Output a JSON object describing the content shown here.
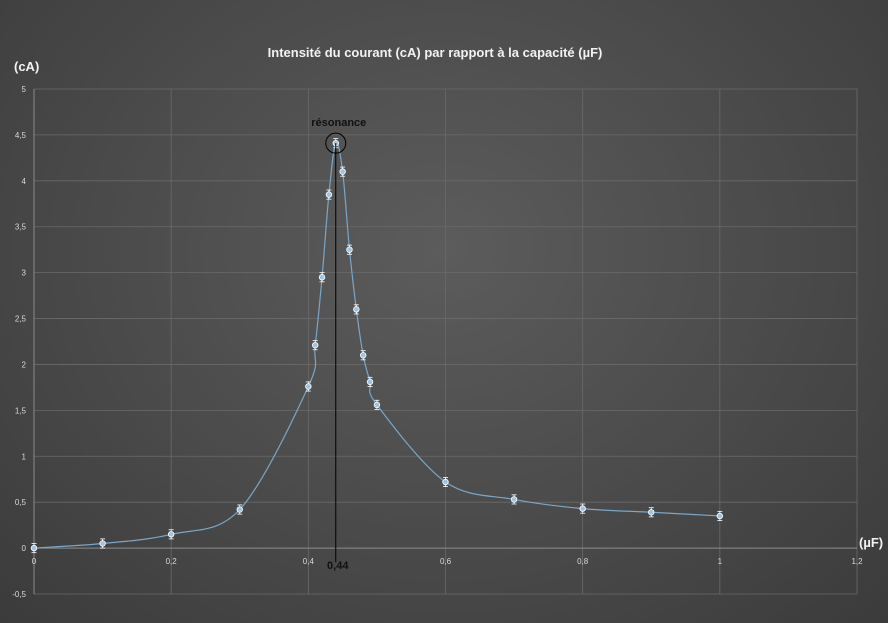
{
  "chart_data": {
    "type": "scatter",
    "title": "Intensité du courant (cA) par rapport à la capacité (µF)",
    "ylabel": "(cA)",
    "xlabel": "(µF)",
    "xlim": [
      0,
      1.2
    ],
    "ylim": [
      -0.5,
      5
    ],
    "x_ticks": [
      "0",
      "0,2",
      "0,4",
      "0,6",
      "0,8",
      "1",
      "1,2"
    ],
    "y_ticks": [
      "-0,5",
      "0",
      "0,5",
      "1",
      "1,5",
      "2",
      "2,5",
      "3",
      "3,5",
      "4",
      "4,5",
      "5"
    ],
    "grid": true,
    "series": [
      {
        "x": [
          0,
          0.1,
          0.2,
          0.3,
          0.4,
          0.41,
          0.42,
          0.43,
          0.44,
          0.45,
          0.46,
          0.47,
          0.48,
          0.49,
          0.5,
          0.6,
          0.7,
          0.8,
          0.9,
          1.0
        ],
        "y": [
          0,
          0.05,
          0.15,
          0.42,
          1.76,
          2.21,
          2.95,
          3.85,
          4.41,
          4.1,
          3.25,
          2.6,
          2.1,
          1.81,
          1.56,
          0.72,
          0.53,
          0.43,
          0.39,
          0.35
        ],
        "error": 0.05
      }
    ],
    "annotations": {
      "resonance_label": "résonance",
      "resonance_x_label": "0,44",
      "resonance_x": 0.44,
      "resonance_y": 4.41
    },
    "colors": {
      "line": "#7aa6c8",
      "marker": "#9fc3e0",
      "marker_edge": "#ffffff",
      "grid": "#6a6a6a",
      "axis": "#8a8a8a",
      "annotation": "#000000"
    }
  }
}
